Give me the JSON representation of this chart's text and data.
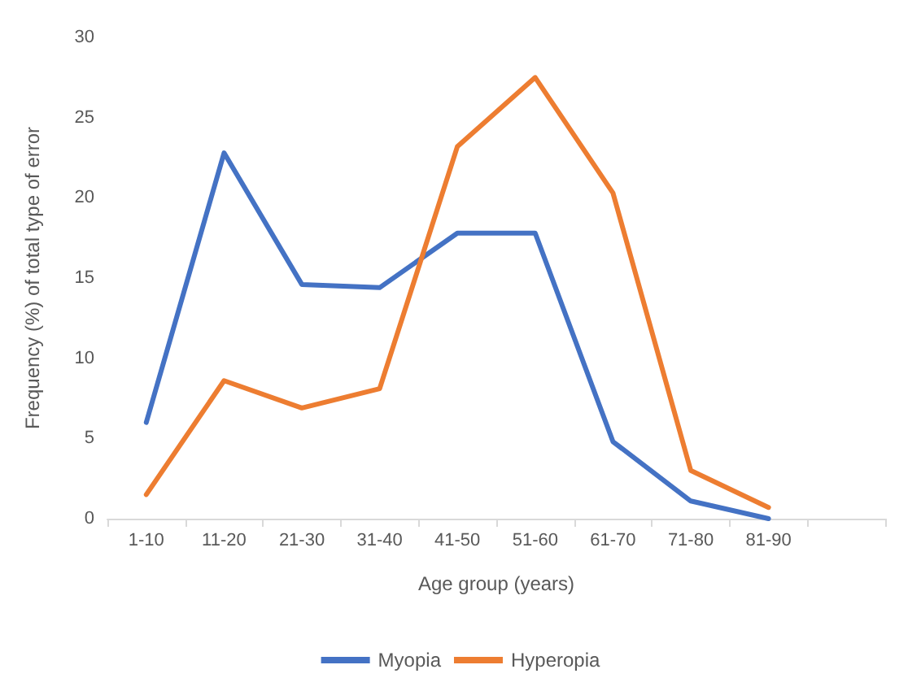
{
  "chart_data": {
    "type": "line",
    "xlabel": "Age group (years)",
    "ylabel": "Frequency (%) of total type of error",
    "categories": [
      "1-10",
      "11-20",
      "21-30",
      "31-40",
      "41-50",
      "51-60",
      "61-70",
      "71-80",
      "81-90",
      null
    ],
    "series": [
      {
        "name": "Myopia",
        "color": "#4472c4",
        "values": [
          6,
          22.8,
          14.6,
          14.4,
          17.8,
          17.8,
          4.8,
          1.1,
          0,
          null
        ]
      },
      {
        "name": "Hyperopia",
        "color": "#ed7d31",
        "values": [
          1.5,
          8.6,
          6.9,
          8.1,
          23.2,
          27.5,
          20.3,
          3.0,
          0.7,
          null
        ]
      }
    ],
    "ylim": [
      0,
      30
    ],
    "yticks": [
      0,
      5,
      10,
      15,
      20,
      25,
      30
    ],
    "grid": false,
    "legend": "bottom",
    "marker": "none",
    "line_style": "solid"
  }
}
